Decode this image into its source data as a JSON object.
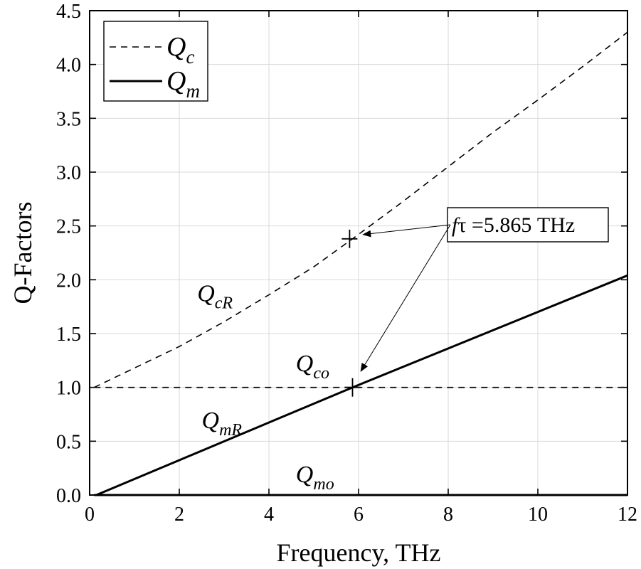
{
  "chart_data": {
    "type": "line",
    "xlabel": "Frequency, THz",
    "ylabel": "Q-Factors",
    "xlim": [
      0,
      12
    ],
    "ylim": [
      0,
      4.5
    ],
    "x_ticks": [
      "0",
      "2",
      "4",
      "6",
      "8",
      "10",
      "12"
    ],
    "y_ticks": [
      "0.0",
      "0.5",
      "1.0",
      "1.5",
      "2.0",
      "2.5",
      "3.0",
      "3.5",
      "4.0",
      "4.5"
    ],
    "grid": true,
    "legend_position": "top-left",
    "legend": [
      {
        "base": "Q",
        "sub": "c",
        "style": "dashed"
      },
      {
        "base": "Q",
        "sub": "m",
        "style": "solid"
      }
    ],
    "series": [
      {
        "id": "QcR",
        "style": "dashed",
        "x": [
          0.1,
          1,
          2,
          3,
          4,
          5,
          5.865,
          7,
          8,
          9,
          10,
          11,
          12
        ],
        "y": [
          1.0,
          1.18,
          1.38,
          1.61,
          1.86,
          2.12,
          2.38,
          2.73,
          3.05,
          3.37,
          3.67,
          3.98,
          4.3
        ]
      },
      {
        "id": "Qco",
        "style": "dashed",
        "x": [
          0.1,
          12
        ],
        "y": [
          1.0,
          1.0
        ]
      },
      {
        "id": "QmR",
        "style": "solid",
        "x": [
          0.15,
          5.865,
          12
        ],
        "y": [
          0.0,
          1.0,
          2.04
        ]
      },
      {
        "id": "Qmo",
        "style": "solid",
        "x": [
          0.1,
          12
        ],
        "y": [
          0.0,
          0.0
        ]
      }
    ],
    "markers": [
      {
        "x": 5.8,
        "y": 2.38
      },
      {
        "x": 5.865,
        "y": 1.0
      }
    ],
    "curve_labels": [
      {
        "base": "Q",
        "sub": "cR",
        "x": 2.4,
        "y": 1.8
      },
      {
        "base": "Q",
        "sub": "co",
        "x": 4.6,
        "y": 1.15
      },
      {
        "base": "Q",
        "sub": "mR",
        "x": 2.5,
        "y": 0.62
      },
      {
        "base": "Q",
        "sub": "mo",
        "x": 4.6,
        "y": 0.12
      }
    ],
    "annotation": {
      "prefix_italic": "f",
      "tau": "τ",
      "value": " =5.865 THz",
      "box_x": 8.0,
      "box_y": 2.5,
      "arrow_targets": [
        {
          "x": 6.1,
          "y": 2.42
        },
        {
          "x": 6.05,
          "y": 1.15
        }
      ]
    },
    "colors": {
      "line": "#000000",
      "grid": "#d9d9d9",
      "background": "#ffffff"
    }
  }
}
